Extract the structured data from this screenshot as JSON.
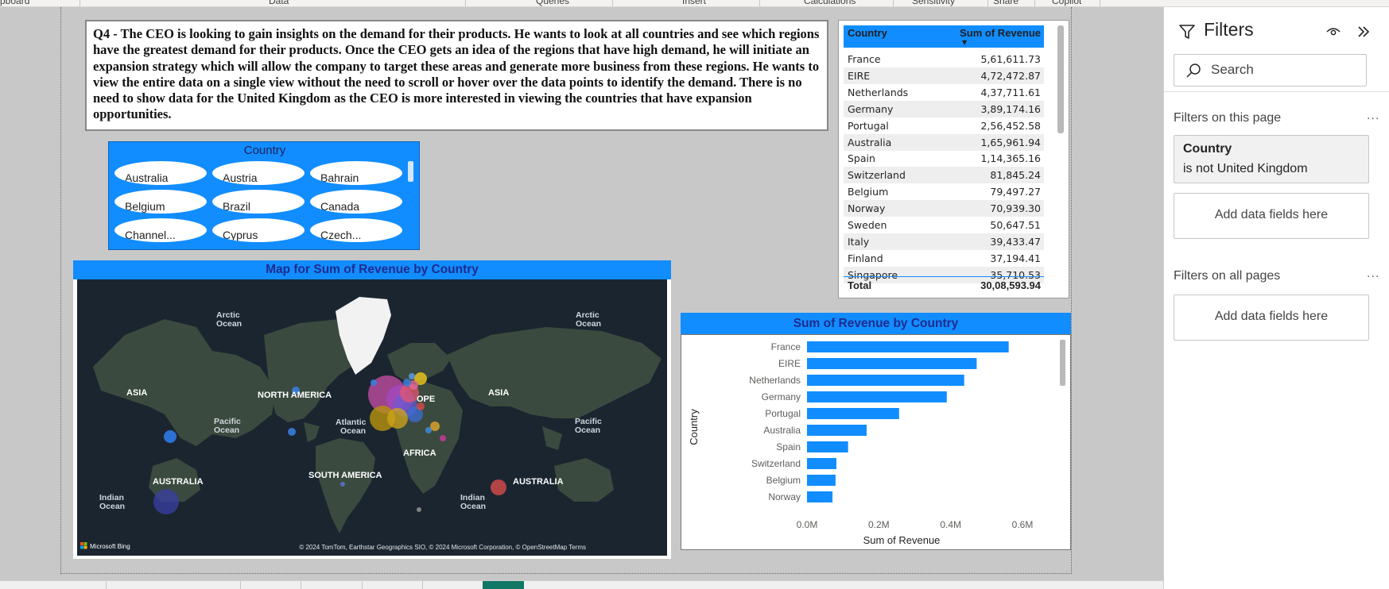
{
  "ribbon": {
    "labels": [
      "pboard",
      "Data",
      "Queries",
      "Insert",
      "Calculations",
      "Sensitivity",
      "Share",
      "Copilot"
    ]
  },
  "question": {
    "text": "Q4 - The CEO is looking to gain insights on the demand for their products. He wants to look at all countries and see which regions have the greatest demand for their products. Once the CEO gets an idea of the regions that have high demand, he will initiate an expansion strategy which will allow the company to target these areas and generate more business from these regions. He wants to view the entire data on a single view without the need to scroll or hover over the data points to identify the demand. There is no need to show data for the United Kingdom as the CEO is more interested in viewing the countries that have expansion opportunities."
  },
  "slicer": {
    "title": "Country",
    "items": [
      "Australia",
      "Austria",
      "Bahrain",
      "Belgium",
      "Brazil",
      "Canada",
      "Channel...",
      "Cyprus",
      "Czech..."
    ]
  },
  "map": {
    "title": "Map for Sum of Revenue by Country",
    "region_labels": [
      "ASIA",
      "NORTH AMERICA",
      "OPE",
      "ASIA",
      "AFRICA",
      "SOUTH AMERICA",
      "AUSTRALIA",
      "AUSTRALIA"
    ],
    "ocean_labels": {
      "arctic_left": [
        "Arctic",
        "Ocean"
      ],
      "arctic_right": [
        "Arctic",
        "Ocean"
      ],
      "pacific_left": [
        "Pacific",
        "Ocean"
      ],
      "atlantic": [
        "Atlantic",
        "Ocean"
      ],
      "pacific_right": [
        "Pacific",
        "Ocean"
      ],
      "indian_left": [
        "Indian",
        "Ocean"
      ],
      "indian_right": [
        "Indian",
        "Ocean"
      ]
    },
    "logo": "Microsoft Bing",
    "attribution": "© 2024 TomTom, Earthstar Geographics SIO, © 2024 Microsoft Corporation, © OpenStreetMap  Terms",
    "colors": {
      "ocean": "#1a2530",
      "land": "#3b4a3e",
      "ice": "#f2f2f2"
    }
  },
  "table": {
    "header_country": "Country",
    "header_revenue": "Sum of Revenue",
    "rows": [
      {
        "country": "France",
        "revenue": "5,61,611.73"
      },
      {
        "country": "EIRE",
        "revenue": "4,72,472.87"
      },
      {
        "country": "Netherlands",
        "revenue": "4,37,711.61"
      },
      {
        "country": "Germany",
        "revenue": "3,89,174.16"
      },
      {
        "country": "Portugal",
        "revenue": "2,56,452.58"
      },
      {
        "country": "Australia",
        "revenue": "1,65,961.94"
      },
      {
        "country": "Spain",
        "revenue": "1,14,365.16"
      },
      {
        "country": "Switzerland",
        "revenue": "81,845.24"
      },
      {
        "country": "Belgium",
        "revenue": "79,497.27"
      },
      {
        "country": "Norway",
        "revenue": "70,939.30"
      },
      {
        "country": "Sweden",
        "revenue": "50,647.51"
      },
      {
        "country": "Italy",
        "revenue": "39,433.47"
      },
      {
        "country": "Finland",
        "revenue": "37,194.41"
      },
      {
        "country": "Singapore",
        "revenue": "35,710.53"
      }
    ],
    "total_label": "Total",
    "total_value": "30,08,593.94"
  },
  "chart_data": {
    "type": "bar",
    "orientation": "horizontal",
    "title": "Sum of Revenue by Country",
    "xlabel": "Sum of Revenue",
    "ylabel": "Country",
    "categories": [
      "France",
      "EIRE",
      "Netherlands",
      "Germany",
      "Portugal",
      "Australia",
      "Spain",
      "Switzerland",
      "Belgium",
      "Norway"
    ],
    "values": [
      561611.73,
      472472.87,
      437711.61,
      389174.16,
      256452.58,
      165961.94,
      114365.16,
      81845.24,
      79497.27,
      70939.3
    ],
    "xlim": [
      0,
      600000
    ],
    "xticks": [
      0,
      200000,
      400000,
      600000
    ],
    "xtick_labels": [
      "0.0M",
      "0.2M",
      "0.4M",
      "0.6M"
    ],
    "grid": false,
    "bar_color": "#118dff"
  },
  "filters": {
    "title": "Filters",
    "search_placeholder": "Search",
    "on_this_page": "Filters on this page",
    "country_filter_name": "Country",
    "country_filter_condition": "is not United Kingdom",
    "add_fields": "Add data fields here",
    "on_all_pages": "Filters on all pages",
    "more": "..."
  }
}
